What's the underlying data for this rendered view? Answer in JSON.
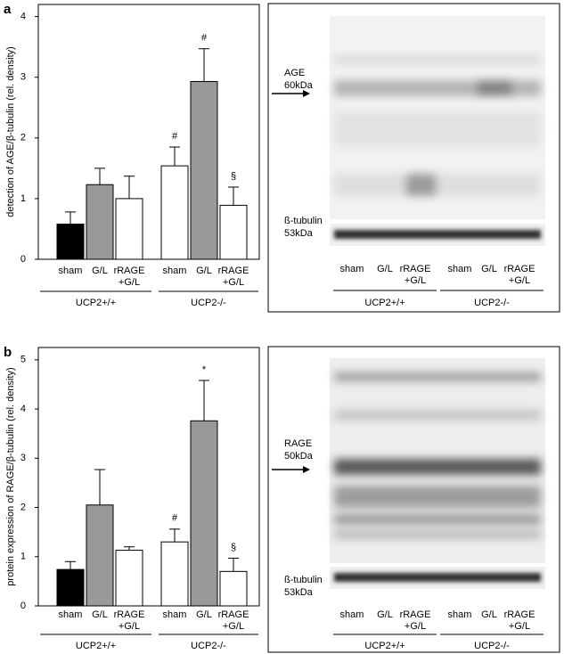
{
  "chart_data": [
    {
      "type": "bar",
      "panel": "a",
      "ylabel": "detection of AGE/β-tubulin (rel. density)",
      "categories": [
        [
          "sham"
        ],
        [
          "G/L"
        ],
        [
          "rRAGE",
          "+G/L"
        ],
        [
          "sham"
        ],
        [
          "G/L"
        ],
        [
          "rRAGE",
          "+G/L"
        ]
      ],
      "groups": [
        "UCP2+/+",
        "UCP2-/-"
      ],
      "values": [
        0.58,
        1.23,
        1.0,
        1.54,
        2.93,
        0.89
      ],
      "errors": [
        0.2,
        0.27,
        0.37,
        0.31,
        0.54,
        0.3
      ],
      "annotations": [
        null,
        null,
        null,
        "#",
        "#",
        "§"
      ],
      "colors": [
        "#000000",
        "#999999",
        "#ffffff",
        "#ffffff",
        "#999999",
        "#ffffff"
      ],
      "ylim": [
        0,
        4.2
      ],
      "yticks": [
        0,
        1,
        2,
        3,
        4
      ]
    },
    {
      "type": "bar",
      "panel": "b",
      "ylabel": "protein expression of RAGE/β-tubulin (rel. density)",
      "categories": [
        [
          "sham"
        ],
        [
          "G/L"
        ],
        [
          "rRAGE",
          "+G/L"
        ],
        [
          "sham"
        ],
        [
          "G/L"
        ],
        [
          "rRAGE",
          "+G/L"
        ]
      ],
      "groups": [
        "UCP2+/+",
        "UCP2-/-"
      ],
      "values": [
        0.74,
        2.05,
        1.13,
        1.3,
        3.76,
        0.7
      ],
      "errors": [
        0.16,
        0.72,
        0.07,
        0.26,
        0.82,
        0.27
      ],
      "annotations": [
        null,
        null,
        null,
        "#",
        "*",
        "§"
      ],
      "colors": [
        "#000000",
        "#999999",
        "#ffffff",
        "#ffffff",
        "#999999",
        "#ffffff"
      ],
      "ylim": [
        0,
        5.25
      ],
      "yticks": [
        0,
        1,
        2,
        3,
        4,
        5
      ]
    }
  ],
  "blots": [
    {
      "target": [
        "AGE",
        "60kDa"
      ],
      "loading": [
        "ß-tubulin",
        "53kDa"
      ],
      "lanes": [
        [
          "sham"
        ],
        [
          "G/L"
        ],
        [
          "rRAGE",
          "+G/L"
        ],
        [
          "sham"
        ],
        [
          "G/L"
        ],
        [
          "rRAGE",
          "+G/L"
        ]
      ],
      "groups": [
        "UCP2+/+",
        "UCP2-/-"
      ]
    },
    {
      "target": [
        "RAGE",
        "50kDa"
      ],
      "loading": [
        "ß-tubulin",
        "53kDa"
      ],
      "lanes": [
        [
          "sham"
        ],
        [
          "G/L"
        ],
        [
          "rRAGE",
          "+G/L"
        ],
        [
          "sham"
        ],
        [
          "G/L"
        ],
        [
          "rRAGE",
          "+G/L"
        ]
      ],
      "groups": [
        "UCP2+/+",
        "UCP2-/-"
      ]
    }
  ]
}
